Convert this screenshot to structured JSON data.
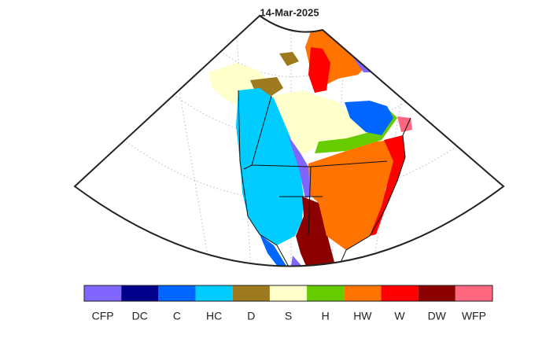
{
  "map": {
    "title": "14-Mar-2025",
    "legend": [
      {
        "label": "CFP",
        "color": "#8066ff"
      },
      {
        "label": "DC",
        "color": "#00008c"
      },
      {
        "label": "C",
        "color": "#0066ff"
      },
      {
        "label": "HC",
        "color": "#00ccff"
      },
      {
        "label": "D",
        "color": "#9e7a1f"
      },
      {
        "label": "S",
        "color": "#ffffcc"
      },
      {
        "label": "H",
        "color": "#66cc00"
      },
      {
        "label": "HW",
        "color": "#ff7300"
      },
      {
        "label": "W",
        "color": "#ff0000"
      },
      {
        "label": "DW",
        "color": "#8c0000"
      },
      {
        "label": "WFP",
        "color": "#ff6680"
      }
    ]
  }
}
